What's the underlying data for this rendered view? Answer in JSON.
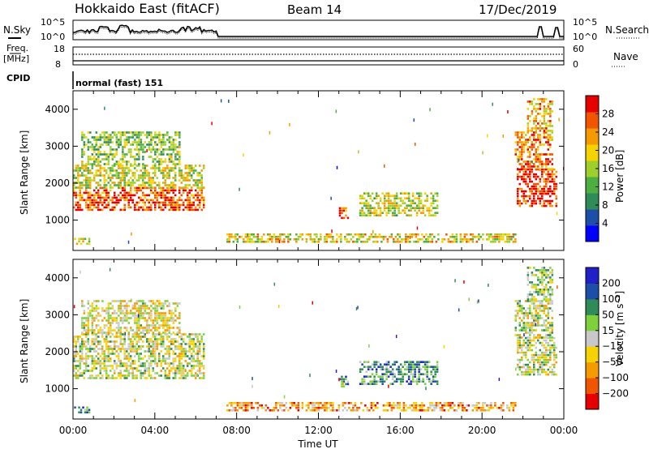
{
  "header": {
    "title": "Hokkaido East (fitACF)",
    "beam": "Beam 14",
    "date": "17/Dec/2019"
  },
  "top_panels": {
    "nsky_label": "N.Sky",
    "nsearch_label": "N.Search",
    "freq_label_1": "Freq.",
    "freq_label_2": "[MHz]",
    "nave_label": "Nave",
    "cpid_label": "CPID",
    "cpid_value": "normal (fast) 151",
    "noise_ticks": [
      "10^5",
      "10^0"
    ],
    "freq_ticks": [
      "18",
      "8"
    ],
    "nave_ticks": [
      "60",
      "0"
    ]
  },
  "chart_data": [
    {
      "type": "heatmap",
      "name": "power-panel",
      "ylabel": "Slant Range [km]",
      "xlabel": "",
      "xlim": [
        0,
        24
      ],
      "ylim": [
        180,
        4500
      ],
      "yticks": [
        "4000",
        "3000",
        "2000",
        "1000"
      ],
      "xticks": [
        "00:00",
        "04:00",
        "08:00",
        "12:00",
        "16:00",
        "20:00",
        "00:00"
      ],
      "colorbar": {
        "label": "Power [dB]",
        "ticks": [
          "28",
          "24",
          "20",
          "16",
          "12",
          "8",
          "4"
        ],
        "range": [
          0,
          30
        ],
        "colors": [
          "#0000ff",
          "#1e4fa8",
          "#2f8b57",
          "#4caf3f",
          "#9ecf2a",
          "#f5d200",
          "#f59a00",
          "#f25500",
          "#e60000"
        ]
      },
      "regions": [
        {
          "t": [
            0.05,
            0.8
          ],
          "r": [
            350,
            520
          ],
          "level": 0.55
        },
        {
          "t": [
            0.0,
            6.4
          ],
          "r": [
            1300,
            1900
          ],
          "level": 0.85
        },
        {
          "t": [
            0.0,
            6.4
          ],
          "r": [
            1900,
            2500
          ],
          "level": 0.55
        },
        {
          "t": [
            0.4,
            5.2
          ],
          "r": [
            2500,
            3400
          ],
          "level": 0.45
        },
        {
          "t": [
            7.5,
            21.6
          ],
          "r": [
            380,
            640
          ],
          "level": 0.6
        },
        {
          "t": [
            13.0,
            13.4
          ],
          "r": [
            1050,
            1350
          ],
          "level": 0.85
        },
        {
          "t": [
            14.0,
            17.8
          ],
          "r": [
            1150,
            1750
          ],
          "level": 0.55
        },
        {
          "t": [
            21.7,
            23.6
          ],
          "r": [
            1350,
            2400
          ],
          "level": 0.9
        },
        {
          "t": [
            21.6,
            23.4
          ],
          "r": [
            2400,
            3400
          ],
          "level": 0.75
        },
        {
          "t": [
            22.2,
            23.4
          ],
          "r": [
            3400,
            4300
          ],
          "level": 0.7
        }
      ]
    },
    {
      "type": "heatmap",
      "name": "velocity-panel",
      "ylabel": "Slant Range [km]",
      "xlabel": "Time UT",
      "xlim": [
        0,
        24
      ],
      "ylim": [
        180,
        4500
      ],
      "yticks": [
        "4000",
        "3000",
        "2000",
        "1000"
      ],
      "xticks": [
        "00:00",
        "04:00",
        "08:00",
        "12:00",
        "16:00",
        "20:00",
        "00:00"
      ],
      "colorbar": {
        "label": "Velocity [m s⁻¹]",
        "ticks": [
          "200",
          "100",
          "50",
          "15",
          "−15",
          "−50",
          "−100",
          "−200"
        ],
        "range": [
          -250,
          250
        ],
        "colors": [
          "#e60000",
          "#f25500",
          "#f59a00",
          "#f5d200",
          "#c8c8c8",
          "#7fd13b",
          "#2f8b57",
          "#1e4fa8",
          "#2020c8"
        ]
      },
      "regions": [
        {
          "t": [
            0.05,
            0.8
          ],
          "r": [
            350,
            520
          ],
          "level": 0.72
        },
        {
          "t": [
            0.0,
            6.4
          ],
          "r": [
            1300,
            2500
          ],
          "level": 0.5
        },
        {
          "t": [
            0.4,
            5.2
          ],
          "r": [
            2500,
            3400
          ],
          "level": 0.45
        },
        {
          "t": [
            7.5,
            21.6
          ],
          "r": [
            380,
            640
          ],
          "level": 0.3
        },
        {
          "t": [
            13.0,
            13.4
          ],
          "r": [
            1050,
            1350
          ],
          "level": 0.7
        },
        {
          "t": [
            14.0,
            17.8
          ],
          "r": [
            1150,
            1750
          ],
          "level": 0.7
        },
        {
          "t": [
            21.7,
            23.6
          ],
          "r": [
            1350,
            2400
          ],
          "level": 0.5
        },
        {
          "t": [
            21.6,
            23.4
          ],
          "r": [
            2400,
            3400
          ],
          "level": 0.5
        },
        {
          "t": [
            22.2,
            23.4
          ],
          "r": [
            3400,
            4300
          ],
          "level": 0.55
        }
      ]
    }
  ]
}
